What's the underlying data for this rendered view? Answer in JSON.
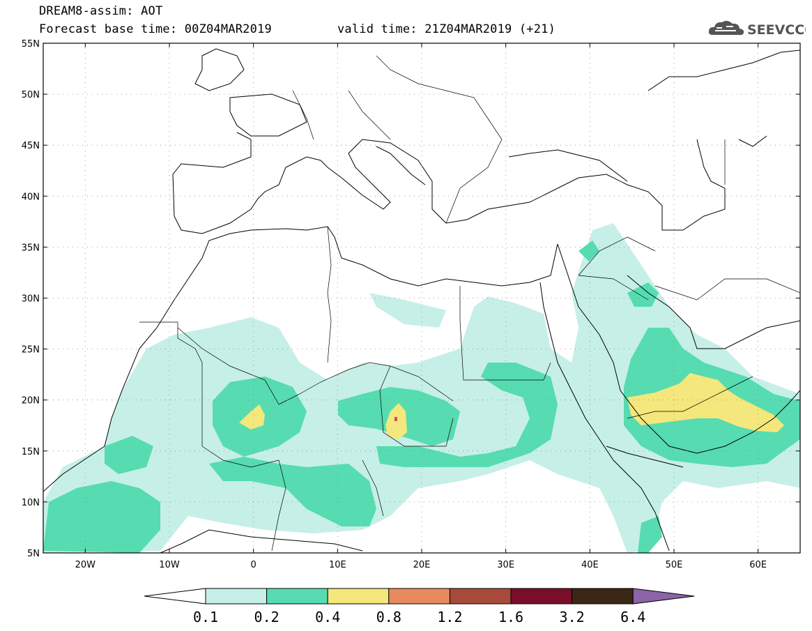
{
  "title": {
    "line1": "DREAM8-assim: AOT",
    "line2": "Forecast base time: 00Z04MAR2019",
    "valid": "valid time: 21Z04MAR2019 (+21)"
  },
  "logo": {
    "text": "SEEVCCC",
    "icon": "cloud-icon"
  },
  "map": {
    "lon_range": [
      -25,
      65
    ],
    "lat_range": [
      5,
      55
    ],
    "lat_ticks": [
      "55N",
      "50N",
      "45N",
      "40N",
      "35N",
      "30N",
      "25N",
      "20N",
      "15N",
      "10N",
      "5N"
    ],
    "lon_ticks": [
      "20W",
      "10W",
      "0",
      "10E",
      "20E",
      "30E",
      "40E",
      "50E",
      "60E"
    ],
    "grid": true,
    "variable": "AOT"
  },
  "colorbar": {
    "labels": [
      "0.1",
      "0.2",
      "0.4",
      "0.8",
      "1.2",
      "1.6",
      "3.2",
      "6.4"
    ],
    "colors": [
      "#ffffff",
      "#c6efe8",
      "#56dcb0",
      "#f4e77c",
      "#e98a5e",
      "#a84a3a",
      "#7a0e2a",
      "#3b2716",
      "#8c64a8"
    ]
  }
}
